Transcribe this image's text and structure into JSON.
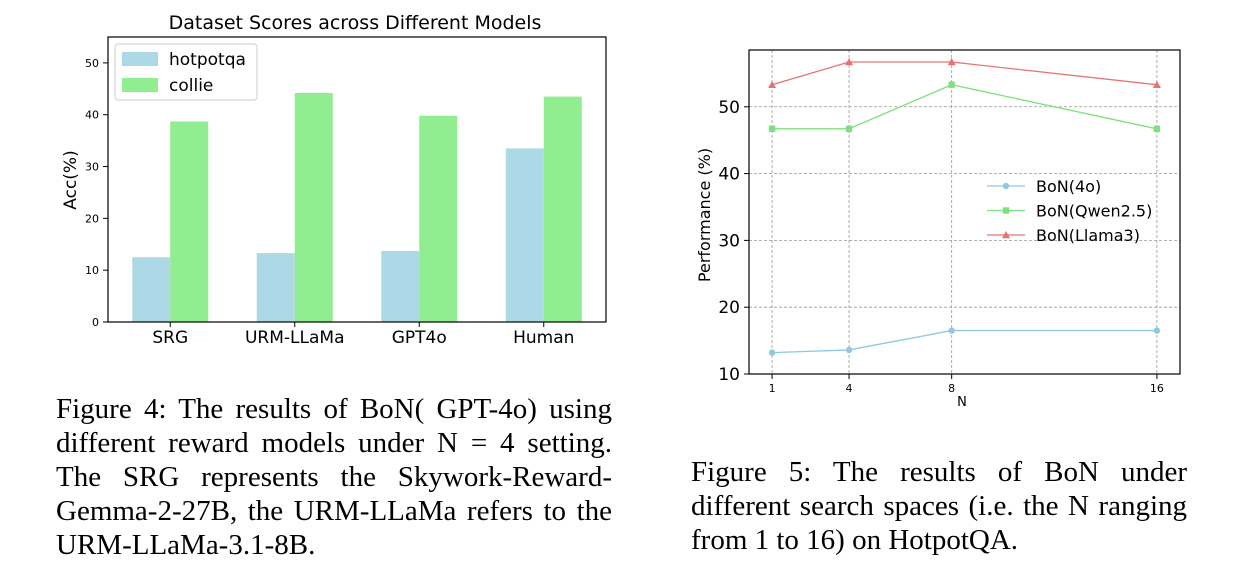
{
  "figures": [
    {
      "caption": "Figure 4: The results of BoN( GPT-4o) using different reward models under N = 4 setting. The SRG represents the Skywork-Reward-Gemma-2-27B, the URM-LLaMa refers to the URM-LLaMa-3.1-8B."
    },
    {
      "caption": "Figure 5: The results of BoN under different search spaces (i.e. the N ranging from 1 to 16) on HotpotQA."
    }
  ],
  "chart_data": [
    {
      "type": "bar",
      "title": "Dataset Scores across Different Models",
      "xlabel": "",
      "ylabel": "Acc(%)",
      "categories": [
        "SRG",
        "URM-LLaMa",
        "GPT4o",
        "Human"
      ],
      "series": [
        {
          "name": "hotpotqa",
          "color": "#add8e6",
          "values": [
            12.5,
            13.3,
            13.7,
            33.5
          ]
        },
        {
          "name": "collie",
          "color": "#90ee90",
          "values": [
            38.7,
            44.2,
            39.8,
            43.5
          ]
        }
      ],
      "ylim": [
        0,
        55
      ],
      "yticks": [
        0,
        10,
        20,
        30,
        40,
        50
      ],
      "legend": "top-left",
      "grid": false
    },
    {
      "type": "line",
      "title": "",
      "xlabel": "N",
      "ylabel": "Performance (%)",
      "x": [
        1,
        4,
        8,
        16
      ],
      "xticks": [
        1,
        4,
        8,
        16
      ],
      "series": [
        {
          "name": "BoN(4o)",
          "color": "#8ec9df",
          "marker": "circle",
          "values": [
            13.2,
            13.6,
            16.5,
            16.5
          ]
        },
        {
          "name": "BoN(Qwen2.5)",
          "color": "#7ee07e",
          "marker": "square",
          "values": [
            46.7,
            46.7,
            53.3,
            46.7
          ]
        },
        {
          "name": "BoN(Llama3)",
          "color": "#e57373",
          "marker": "triangle",
          "values": [
            53.3,
            56.7,
            56.7,
            53.3
          ]
        }
      ],
      "xlim": [
        0.1,
        16.9
      ],
      "ylim": [
        10,
        58.5
      ],
      "yticks": [
        10,
        20,
        30,
        40,
        50
      ],
      "legend": "center-right",
      "grid": true
    }
  ]
}
